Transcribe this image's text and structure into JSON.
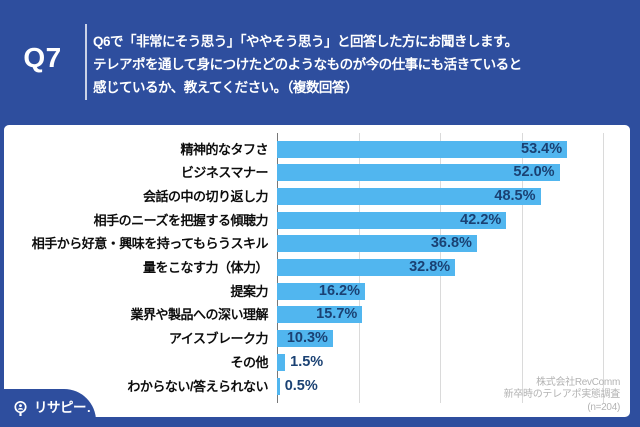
{
  "header": {
    "question_number": "Q7",
    "question_lines": [
      "Q6で「非常にそう思う」「ややそう思う」と回答した方にお聞きします。",
      "テレアポを通して身につけたどのようなものが今の仕事にも活きていると",
      "感じているか、教えてください。（複数回答）"
    ]
  },
  "chart_data": {
    "type": "bar",
    "orientation": "horizontal",
    "categories": [
      "精神的なタフさ",
      "ビジネスマナー",
      "会話の中の切り返し力",
      "相手のニーズを把握する傾聴力",
      "相手から好意・興味を持ってもらうスキル",
      "量をこなす力（体力）",
      "提案力",
      "業界や製品への深い理解",
      "アイスブレーク力",
      "その他",
      "わからない/答えられない"
    ],
    "values": [
      53.4,
      52.0,
      48.5,
      42.2,
      36.8,
      32.8,
      16.2,
      15.7,
      10.3,
      1.5,
      0.5
    ],
    "value_labels": [
      "53.4%",
      "52.0%",
      "48.5%",
      "42.2%",
      "36.8%",
      "32.8%",
      "16.2%",
      "15.7%",
      "10.3%",
      "1.5%",
      "0.5%"
    ],
    "xlim": [
      0,
      60
    ],
    "gridlines": [
      0,
      15,
      30,
      45,
      60
    ],
    "grid_on": true,
    "legend": "none",
    "xlabel": "",
    "ylabel": ""
  },
  "source": {
    "lines": [
      "株式会社RevComm",
      "新卒時のテレアポ実態調査",
      "(n=204)"
    ]
  },
  "logo": {
    "text": "リサピー",
    "dot": ".",
    "icon": "magnifier-icon"
  },
  "colors": {
    "background": "#2E4E9E",
    "card": "#FFFFFF",
    "bar": "#51B6EF",
    "value_text": "#1A4173",
    "grid": "#DADADA",
    "axis": "#777777",
    "source_text": "#B3B3B3",
    "header_text": "#FFFFFF",
    "category_text": "#0D0D0D"
  }
}
